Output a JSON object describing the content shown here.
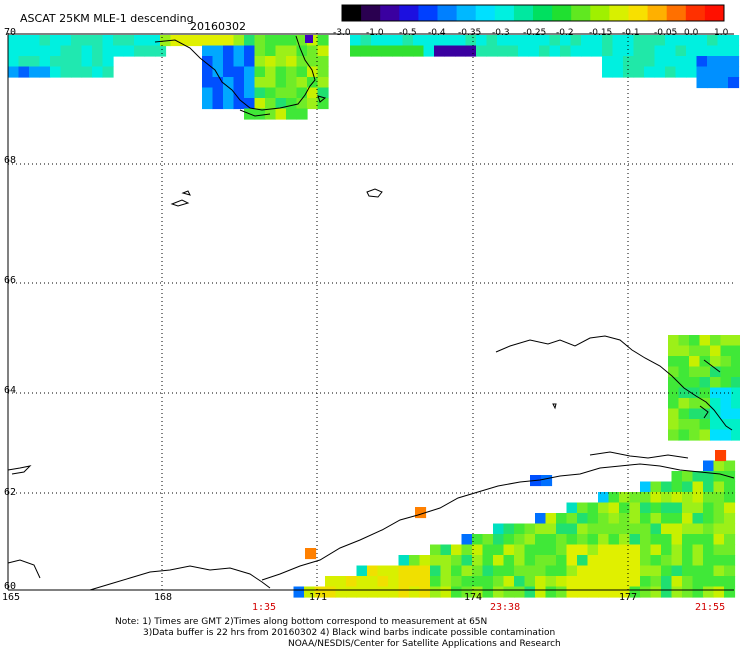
{
  "header": {
    "title": "ASCAT 25KM MLE-1 descending",
    "date": "20160302"
  },
  "colorbar": {
    "labels": [
      "-3.0",
      "-1.0",
      "-0.5",
      "-0.4",
      "-0.35",
      "-0.3",
      "-0.25",
      "-0.2",
      "-0.15",
      "-0.1",
      "-0.05",
      "0.0",
      "1.0"
    ],
    "colors": [
      "#000000",
      "#3a007a",
      "#2a00c8",
      "#0030ff",
      "#0090ff",
      "#00d8ff",
      "#00e8c8",
      "#00e070",
      "#30e030",
      "#a8f000",
      "#f0f000",
      "#ff9a00",
      "#ff2000"
    ]
  },
  "axes": {
    "lat_labels": [
      "70",
      "68",
      "66",
      "64",
      "62",
      "60"
    ],
    "lon_labels": [
      "165",
      "168",
      "171",
      "174",
      "177"
    ]
  },
  "times": [
    "1:35",
    "23:38",
    "21:55"
  ],
  "notes": {
    "line1": "Note: 1) Times are GMT 2)Times along bottom correspond to measurement at 65N",
    "line2": "3)Data buffer is 22 hrs from 20160302 4) Black wind barbs indicate possible contamination",
    "line3": "NOAA/NESDIS/Center for Satellite Applications and Research"
  },
  "colors": {
    "green": "#30e030",
    "red_text": "#d20000"
  }
}
